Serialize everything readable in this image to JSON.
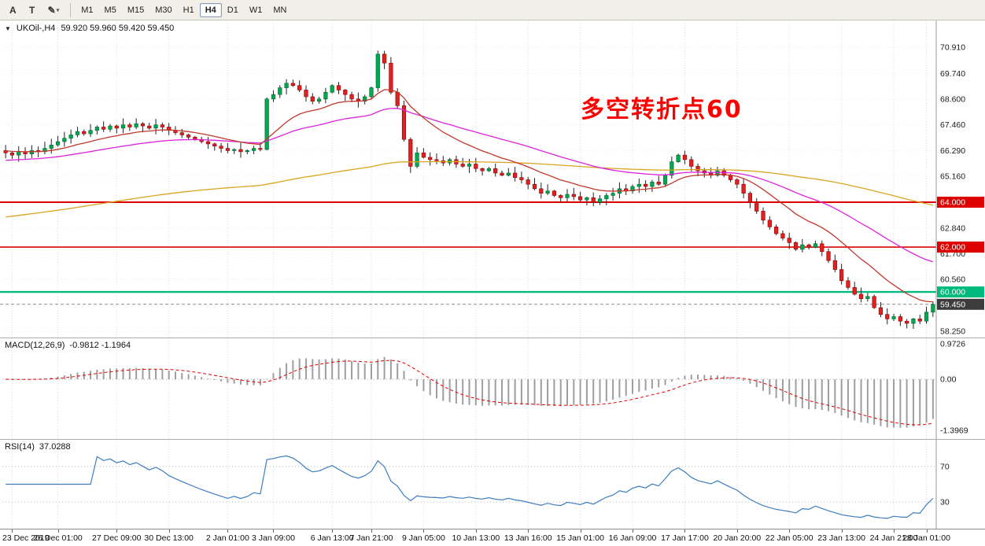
{
  "toolbar": {
    "tools": [
      {
        "id": "a-tool",
        "label": "A"
      },
      {
        "id": "text-tool",
        "label": "T"
      },
      {
        "id": "draw-tool",
        "label": "✎",
        "caret": "▾"
      }
    ],
    "timeframes": [
      "M1",
      "M5",
      "M15",
      "M30",
      "H1",
      "H4",
      "D1",
      "W1",
      "MN"
    ],
    "active_timeframe": "H4"
  },
  "chart_header": {
    "collapse_icon": "▼",
    "symbol": "UKOil-,H4",
    "ohlc": "59.920 59.960 59.420 59.450"
  },
  "annotation": {
    "text": "多空转折点60",
    "color": "#ff0000"
  },
  "indicators": {
    "macd": {
      "label": "MACD(12,26,9)",
      "values": "-0.9812 -1.1964"
    },
    "rsi": {
      "label": "RSI(14)",
      "value": "37.0288"
    }
  },
  "chart_data": {
    "type": "candlestick",
    "symbol": "UKOil-",
    "timeframe": "H4",
    "title": "UKOil-,H4 59.920 59.960 59.420 59.450",
    "first_open": 66.3,
    "closes": [
      66.2,
      66.1,
      66.25,
      66.15,
      66.3,
      66.25,
      66.4,
      66.55,
      66.7,
      66.85,
      67.0,
      67.15,
      67.05,
      67.2,
      67.35,
      67.25,
      67.4,
      67.3,
      67.45,
      67.35,
      67.5,
      67.4,
      67.3,
      67.45,
      67.35,
      67.2,
      67.1,
      67.0,
      66.9,
      66.8,
      66.7,
      66.6,
      66.5,
      66.4,
      66.3,
      66.35,
      66.25,
      66.3,
      66.4,
      66.35,
      68.6,
      68.8,
      69.1,
      69.3,
      69.2,
      69.0,
      68.7,
      68.5,
      68.6,
      68.9,
      69.2,
      69.0,
      68.8,
      68.6,
      68.5,
      68.7,
      69.1,
      70.6,
      70.2,
      68.9,
      68.3,
      66.8,
      65.6,
      66.2,
      66.0,
      65.9,
      65.85,
      65.75,
      65.9,
      65.7,
      65.6,
      65.7,
      65.5,
      65.4,
      65.5,
      65.3,
      65.2,
      65.3,
      65.1,
      65.0,
      64.8,
      64.6,
      64.4,
      64.5,
      64.3,
      64.2,
      64.35,
      64.25,
      64.1,
      64.2,
      64.0,
      64.15,
      64.3,
      64.4,
      64.6,
      64.5,
      64.7,
      64.8,
      64.7,
      64.9,
      64.8,
      65.2,
      65.8,
      66.1,
      65.9,
      65.6,
      65.4,
      65.3,
      65.2,
      65.4,
      65.2,
      65.0,
      64.8,
      64.4,
      64.0,
      63.6,
      63.2,
      62.9,
      62.6,
      62.4,
      62.2,
      61.9,
      62.1,
      62.0,
      62.15,
      61.8,
      61.4,
      61.0,
      60.5,
      60.2,
      59.9,
      59.7,
      59.8,
      59.3,
      59.0,
      58.8,
      58.9,
      58.7,
      58.6,
      58.8,
      58.7,
      59.1,
      59.45
    ],
    "price_range": [
      57.97,
      72.1
    ],
    "price_axis_ticks": [
      "70.910",
      "69.740",
      "68.600",
      "67.460",
      "66.290",
      "65.160",
      "62.840",
      "61.700",
      "60.560",
      "58.250"
    ],
    "levels": [
      {
        "value": 64.0,
        "label": "64.000",
        "color": "#dd0000",
        "width": 2
      },
      {
        "value": 62.0,
        "label": "62.000",
        "color": "#dd0000",
        "width": 1.6
      },
      {
        "value": 60.0,
        "label": "60.000",
        "color": "#00b97c",
        "width": 2.4
      }
    ],
    "current_price": {
      "value": 59.45,
      "label": "59.450",
      "badge_color": "#3c3c3c"
    },
    "moving_averages": [
      {
        "name": "ma-slow-orange-line",
        "period": 150,
        "seed": 63.3,
        "color": "#d9a520"
      },
      {
        "name": "ma-mid-magenta-line",
        "period": 40,
        "seed": 65.85,
        "color": "#dd22dd"
      },
      {
        "name": "ma-fast-red-line",
        "period": 15,
        "seed": 66.3,
        "color": "#c0392b"
      }
    ],
    "time_ticks": [
      {
        "label": "23 Dec 2019",
        "i": 1
      },
      {
        "label": "26 Dec 01:00",
        "i": 8
      },
      {
        "label": "27 Dec 09:00",
        "i": 17
      },
      {
        "label": "30 Dec 13:00",
        "i": 25
      },
      {
        "label": "2 Jan 01:00",
        "i": 34
      },
      {
        "label": "3 Jan 09:00",
        "i": 41
      },
      {
        "label": "6 Jan 13:00",
        "i": 50
      },
      {
        "label": "7 Jan 21:00",
        "i": 56
      },
      {
        "label": "9 Jan 05:00",
        "i": 64
      },
      {
        "label": "10 Jan 13:00",
        "i": 72
      },
      {
        "label": "13 Jan 16:00",
        "i": 80
      },
      {
        "label": "15 Jan 01:00",
        "i": 88
      },
      {
        "label": "16 Jan 09:00",
        "i": 96
      },
      {
        "label": "17 Jan 17:00",
        "i": 104
      },
      {
        "label": "20 Jan 20:00",
        "i": 112
      },
      {
        "label": "22 Jan 05:00",
        "i": 120
      },
      {
        "label": "23 Jan 13:00",
        "i": 128
      },
      {
        "label": "24 Jan 21:00",
        "i": 136
      },
      {
        "label": "28 Jan 01:00",
        "i": 141
      }
    ],
    "macd_panel": {
      "fast": 12,
      "slow": 26,
      "signal": 9,
      "range": [
        -1.635,
        1.123
      ],
      "axis_ticks": [
        {
          "value": 0.9726,
          "label": "0.9726"
        },
        {
          "value": 0.0,
          "label": "0.00"
        },
        {
          "value": -1.3969,
          "label": "-1.3969"
        }
      ]
    },
    "rsi_panel": {
      "period": 14,
      "range": [
        0,
        100
      ],
      "levels": [
        {
          "value": 70,
          "label": "70"
        },
        {
          "value": 30,
          "label": "30"
        }
      ],
      "color": "#3d7dbf"
    },
    "colors": {
      "bull": "#00a94f",
      "bull_edge": "#006633",
      "bear": "#e32020",
      "bear_edge": "#8b0000",
      "wick": "#222222",
      "histogram": "#9e9e9e",
      "signal": "#e00000",
      "grid": "#dedede"
    }
  }
}
